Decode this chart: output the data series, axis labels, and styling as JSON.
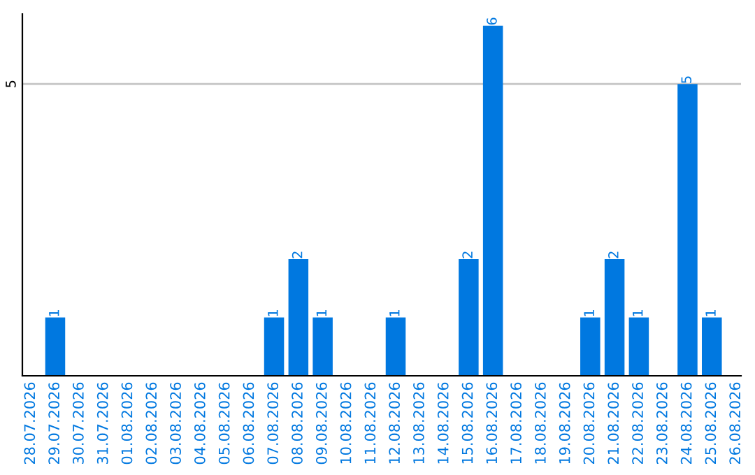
{
  "chart_data": {
    "type": "bar",
    "categories": [
      "28.07.2026",
      "29.07.2026",
      "30.07.2026",
      "31.07.2026",
      "01.08.2026",
      "02.08.2026",
      "03.08.2026",
      "04.08.2026",
      "05.08.2026",
      "06.08.2026",
      "07.08.2026",
      "08.08.2026",
      "09.08.2026",
      "10.08.2026",
      "11.08.2026",
      "12.08.2026",
      "13.08.2026",
      "14.08.2026",
      "15.08.2026",
      "16.08.2026",
      "17.08.2026",
      "18.08.2026",
      "19.08.2026",
      "20.08.2026",
      "21.08.2026",
      "22.08.2026",
      "23.08.2026",
      "24.08.2026",
      "25.08.2026",
      "26.08.2026"
    ],
    "values": [
      0,
      1,
      0,
      0,
      0,
      0,
      0,
      0,
      0,
      0,
      1,
      2,
      1,
      0,
      0,
      1,
      0,
      0,
      2,
      6,
      0,
      0,
      0,
      1,
      2,
      1,
      0,
      5,
      1,
      0
    ],
    "value_labels": [
      null,
      "1",
      null,
      null,
      null,
      null,
      null,
      null,
      null,
      null,
      "1",
      "2",
      "1",
      null,
      null,
      "1",
      null,
      null,
      "2",
      "6",
      null,
      null,
      null,
      "1",
      "2",
      "1",
      null,
      "5",
      "1",
      null
    ],
    "color": "#0078e0",
    "ylim": [
      0,
      6.2
    ],
    "yticks": [
      5
    ],
    "grid": "y",
    "legend": false
  }
}
